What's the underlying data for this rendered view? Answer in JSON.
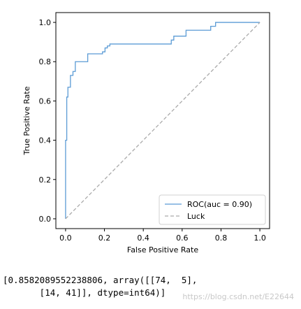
{
  "chart_data": {
    "type": "line",
    "title": "",
    "xlabel": "False Positive Rate",
    "ylabel": "True Positive Rate",
    "xlim": [
      -0.05,
      1.05
    ],
    "ylim": [
      -0.05,
      1.05
    ],
    "xticks": [
      0.0,
      0.2,
      0.4,
      0.6,
      0.8,
      1.0
    ],
    "yticks": [
      0.0,
      0.2,
      0.4,
      0.6,
      0.8,
      1.0
    ],
    "xtick_labels": [
      "0.0",
      "0.2",
      "0.4",
      "0.6",
      "0.8",
      "1.0"
    ],
    "ytick_labels": [
      "0.0",
      "0.2",
      "0.4",
      "0.6",
      "0.8",
      "1.0"
    ],
    "grid": false,
    "legend_position": "bottom-right",
    "series": [
      {
        "name": "ROC(auc = 0.90)",
        "color": "#5b9bd5",
        "style": "solid",
        "x": [
          0.0,
          0.0,
          0.006,
          0.006,
          0.012,
          0.012,
          0.025,
          0.025,
          0.038,
          0.038,
          0.05,
          0.05,
          0.063,
          0.063,
          0.114,
          0.114,
          0.19,
          0.19,
          0.203,
          0.203,
          0.215,
          0.215,
          0.228,
          0.228,
          0.544,
          0.544,
          0.557,
          0.557,
          0.62,
          0.62,
          0.747,
          0.747,
          0.772,
          0.772,
          1.0
        ],
        "y": [
          0.0,
          0.4,
          0.4,
          0.62,
          0.62,
          0.67,
          0.67,
          0.73,
          0.73,
          0.75,
          0.75,
          0.8,
          0.8,
          0.8,
          0.8,
          0.84,
          0.84,
          0.85,
          0.85,
          0.87,
          0.87,
          0.88,
          0.88,
          0.89,
          0.89,
          0.91,
          0.91,
          0.93,
          0.93,
          0.96,
          0.96,
          0.98,
          0.98,
          1.0,
          1.0
        ]
      },
      {
        "name": "Luck",
        "color": "#aaaaaa",
        "style": "dashed",
        "x": [
          0.0,
          1.0
        ],
        "y": [
          0.0,
          1.0
        ]
      }
    ]
  },
  "output": {
    "line1": "[0.8582089552238806, array([[74,  5],",
    "line2": "       [14, 41]], dtype=int64)]"
  },
  "watermark": "https://blog.csdn.net/E22644"
}
